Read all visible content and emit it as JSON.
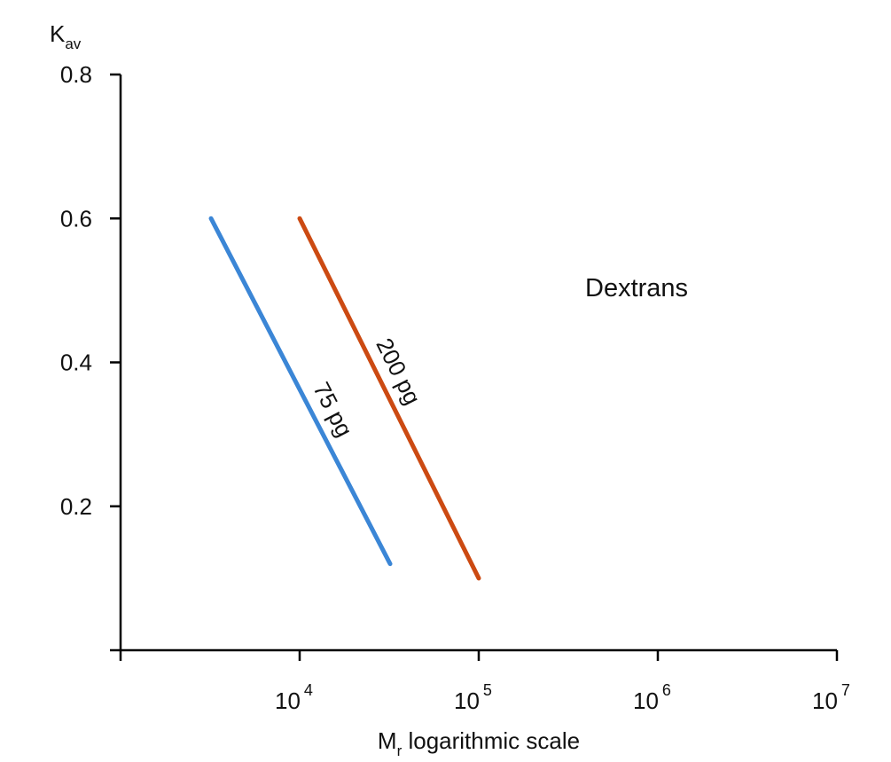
{
  "chart_data": {
    "type": "line",
    "ylabel": {
      "main": "K",
      "sub": "av"
    },
    "xlabel": {
      "main": "M",
      "sub": "r",
      "rest": " logarithmic scale"
    },
    "x_scale": "log",
    "xlim": [
      1000,
      10000000
    ],
    "ylim": [
      0,
      0.8
    ],
    "grid": false,
    "y_ticks": [
      {
        "value": 0.2,
        "label": "0.2"
      },
      {
        "value": 0.4,
        "label": "0.4"
      },
      {
        "value": 0.6,
        "label": "0.6"
      },
      {
        "value": 0.8,
        "label": "0.8"
      }
    ],
    "x_ticks": [
      {
        "value": 1000,
        "base": "",
        "exp": ""
      },
      {
        "value": 10000,
        "base": "10",
        "exp": "4"
      },
      {
        "value": 100000,
        "base": "10",
        "exp": "5"
      },
      {
        "value": 1000000,
        "base": "10",
        "exp": "6"
      },
      {
        "value": 10000000,
        "base": "10",
        "exp": "7"
      }
    ],
    "series": [
      {
        "name": "75 pg",
        "color": "#3b86d6",
        "points": [
          [
            3200,
            0.6
          ],
          [
            32000,
            0.12
          ]
        ]
      },
      {
        "name": "200 pg",
        "color": "#cc4a12",
        "points": [
          [
            10000,
            0.6
          ],
          [
            100000,
            0.1
          ]
        ]
      }
    ],
    "annotations": [
      {
        "text": "Dextrans"
      }
    ]
  }
}
